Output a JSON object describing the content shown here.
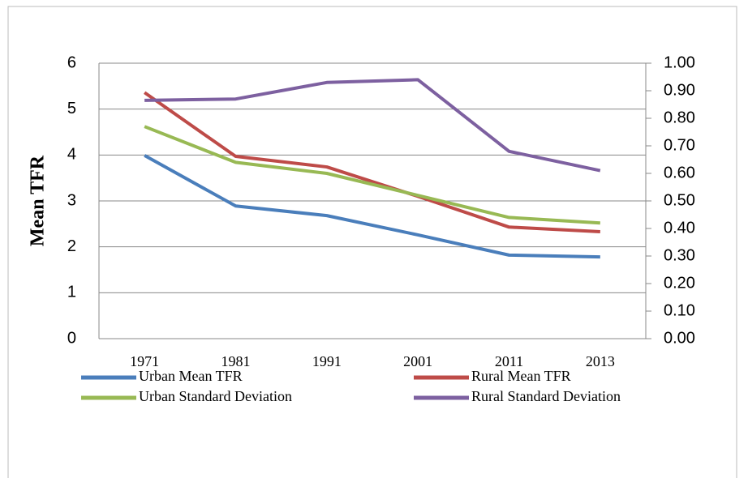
{
  "chart_data": {
    "type": "line",
    "y_label": "Mean TFR",
    "categories": [
      "1971",
      "1981",
      "1991",
      "2001",
      "2011",
      "2013"
    ],
    "series": [
      {
        "name": "Urban Mean TFR",
        "color": "#4a7ebb",
        "values": [
          3.99,
          2.89,
          2.68,
          2.26,
          1.82,
          1.78
        ]
      },
      {
        "name": "Rural Mean TFR",
        "color": "#be4b48",
        "values": [
          5.36,
          3.97,
          3.74,
          3.1,
          2.43,
          2.33
        ]
      },
      {
        "name": "Urban Standard Deviation",
        "color": "#98b954",
        "axis": "y2",
        "values": [
          0.77,
          0.64,
          0.6,
          0.52,
          0.44,
          0.42
        ]
      },
      {
        "name": "Rural Standard Deviation",
        "color": "#7d60a0",
        "axis": "y2",
        "values": [
          0.865,
          0.87,
          0.93,
          0.94,
          0.68,
          0.61
        ]
      }
    ],
    "ylim": [
      0,
      6
    ],
    "yticks": [
      0,
      1,
      2,
      3,
      4,
      5,
      6
    ],
    "y2lim": [
      0,
      1
    ],
    "y2ticks": [
      {
        "value": 0,
        "label": "0.00"
      },
      {
        "value": 0.1,
        "label": "0.10"
      },
      {
        "value": 0.2,
        "label": "0.20"
      },
      {
        "value": 0.3,
        "label": "0.30"
      },
      {
        "value": 0.4,
        "label": "0.40"
      },
      {
        "value": 0.5,
        "label": "0.50"
      },
      {
        "value": 0.6,
        "label": "0.60"
      },
      {
        "value": 0.7,
        "label": "0.70"
      },
      {
        "value": 0.8,
        "label": "0.80"
      },
      {
        "value": 0.9,
        "label": "0.90"
      },
      {
        "value": 1,
        "label": "1.00"
      }
    ],
    "grid": true,
    "legend": "bottom"
  }
}
